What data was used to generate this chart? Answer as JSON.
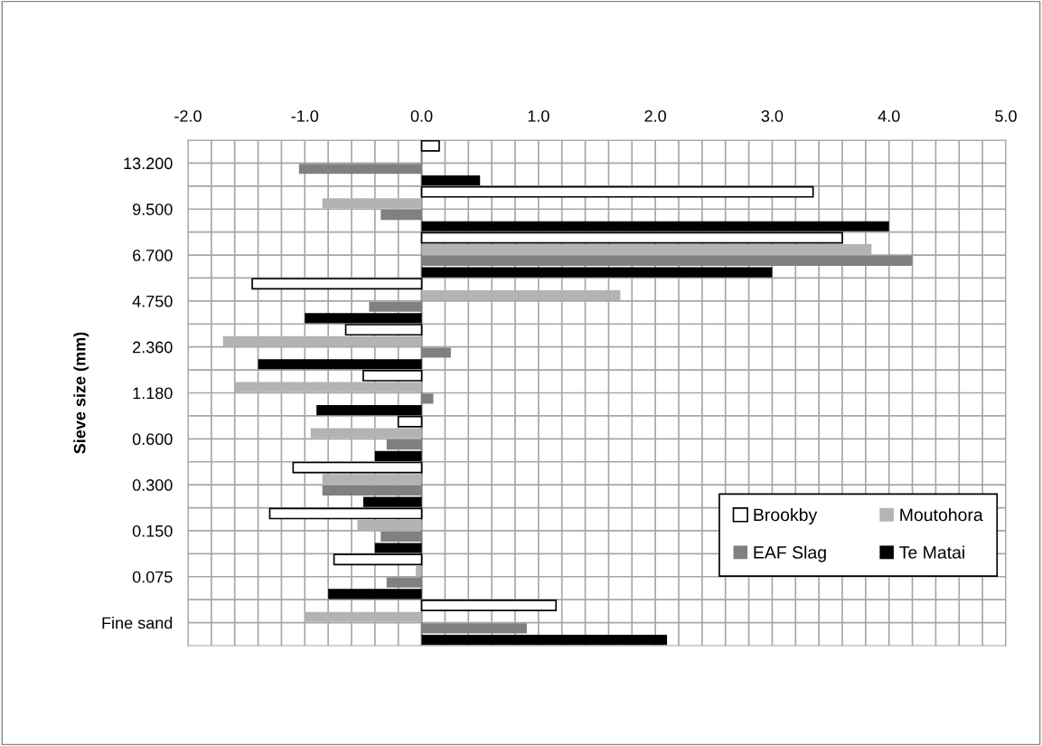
{
  "chart_data": {
    "type": "bar",
    "orientation": "horizontal",
    "ylabel": "Sieve size (mm)",
    "categories": [
      "13.200",
      "9.500",
      "6.700",
      "4.750",
      "2.360",
      "1.180",
      "0.600",
      "0.300",
      "0.150",
      "0.075",
      "Fine sand"
    ],
    "series": [
      {
        "name": "Brookby",
        "color": "#ffffff",
        "values": [
          0.15,
          3.35,
          3.6,
          -1.45,
          -0.65,
          -0.5,
          -0.2,
          -1.1,
          -1.3,
          -0.75,
          1.15
        ]
      },
      {
        "name": "Moutohora",
        "color": "#b3b3b3",
        "values": [
          null,
          -0.85,
          3.85,
          1.7,
          -1.7,
          -1.6,
          -0.95,
          -0.85,
          -0.55,
          -0.05,
          -1.0
        ]
      },
      {
        "name": "EAF Slag",
        "color": "#808080",
        "values": [
          -1.05,
          -0.35,
          4.2,
          -0.45,
          0.25,
          0.1,
          -0.3,
          -0.85,
          -0.35,
          -0.3,
          0.9
        ]
      },
      {
        "name": "Te Matai",
        "color": "#000000",
        "values": [
          0.5,
          4.0,
          3.0,
          -1.0,
          -1.4,
          -0.9,
          -0.4,
          -0.5,
          -0.4,
          -0.8,
          2.1
        ]
      }
    ],
    "xlim": [
      -2,
      5
    ],
    "xticks": [
      {
        "value": -2,
        "label": "-2.0"
      },
      {
        "value": -1.8,
        "label": null
      },
      {
        "value": -1.6,
        "label": null
      },
      {
        "value": -1.4,
        "label": null
      },
      {
        "value": -1.2,
        "label": null
      },
      {
        "value": -1,
        "label": "-1.0"
      },
      {
        "value": -0.8,
        "label": null
      },
      {
        "value": -0.6,
        "label": null
      },
      {
        "value": -0.4,
        "label": null
      },
      {
        "value": -0.2,
        "label": null
      },
      {
        "value": 0,
        "label": "0.0"
      },
      {
        "value": 0.2,
        "label": null
      },
      {
        "value": 0.4,
        "label": null
      },
      {
        "value": 0.6,
        "label": null
      },
      {
        "value": 0.8,
        "label": null
      },
      {
        "value": 1,
        "label": "1.0"
      },
      {
        "value": 1.2,
        "label": null
      },
      {
        "value": 1.4,
        "label": null
      },
      {
        "value": 1.6,
        "label": null
      },
      {
        "value": 1.8,
        "label": null
      },
      {
        "value": 2,
        "label": "2.0"
      },
      {
        "value": 2.2,
        "label": null
      },
      {
        "value": 2.4,
        "label": null
      },
      {
        "value": 2.6,
        "label": null
      },
      {
        "value": 2.8,
        "label": null
      },
      {
        "value": 3,
        "label": "3.0"
      },
      {
        "value": 3.2,
        "label": null
      },
      {
        "value": 3.4,
        "label": null
      },
      {
        "value": 3.6,
        "label": null
      },
      {
        "value": 3.8,
        "label": null
      },
      {
        "value": 4,
        "label": "4.0"
      },
      {
        "value": 4.2,
        "label": null
      },
      {
        "value": 4.4,
        "label": null
      },
      {
        "value": 4.6,
        "label": null
      },
      {
        "value": 4.8,
        "label": null
      },
      {
        "value": 5,
        "label": "5.0"
      }
    ],
    "grid": true,
    "legend": "bottom right"
  }
}
